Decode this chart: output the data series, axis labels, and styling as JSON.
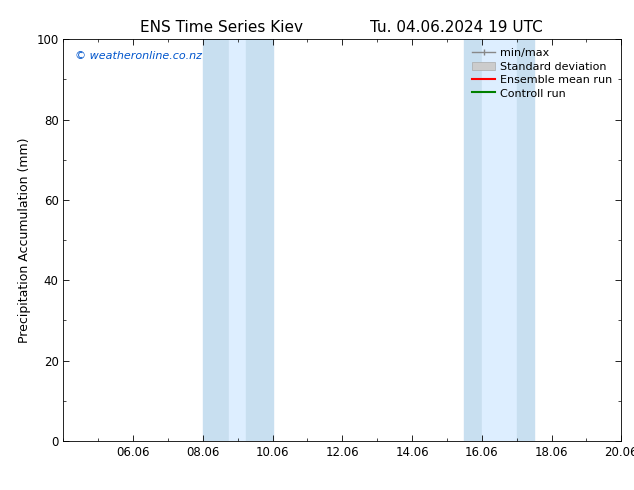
{
  "title_left": "ENS Time Series Kiev",
  "title_right": "Tu. 04.06.2024 19 UTC",
  "ylabel": "Precipitation Accumulation (mm)",
  "xtick_labels": [
    "06.06",
    "08.06",
    "10.06",
    "12.06",
    "14.06",
    "16.06",
    "18.06",
    "20.06"
  ],
  "xtick_positions": [
    2,
    4,
    6,
    8,
    10,
    12,
    14,
    16
  ],
  "ylim": [
    0,
    100
  ],
  "yticks": [
    0,
    20,
    40,
    60,
    80,
    100
  ],
  "shaded_regions": [
    {
      "x_start": 4.0,
      "x_end": 4.5,
      "color": "#d0e8f8"
    },
    {
      "x_start": 4.5,
      "x_end": 5.5,
      "color": "#ddeef8"
    },
    {
      "x_start": 5.5,
      "x_end": 6.0,
      "color": "#d0e8f8"
    },
    {
      "x_start": 11.5,
      "x_end": 12.0,
      "color": "#d0e8f8"
    },
    {
      "x_start": 12.0,
      "x_end": 13.0,
      "color": "#ddeef8"
    },
    {
      "x_start": 13.0,
      "x_end": 13.5,
      "color": "#d0e8f8"
    }
  ],
  "bg_color": "#ffffff",
  "plot_bg_color": "#ffffff",
  "watermark_text": "© weatheronline.co.nz",
  "watermark_color": "#0055cc",
  "legend_items": [
    {
      "label": "min/max",
      "color": "#aaaaaa",
      "lw": 1.5
    },
    {
      "label": "Standard deviation",
      "color": "#cccccc",
      "lw": 6
    },
    {
      "label": "Ensemble mean run",
      "color": "#ff0000",
      "lw": 1.5
    },
    {
      "label": "Controll run",
      "color": "#008000",
      "lw": 1.5
    }
  ],
  "title_fontsize": 11,
  "axis_fontsize": 9,
  "tick_fontsize": 8.5,
  "watermark_fontsize": 8
}
